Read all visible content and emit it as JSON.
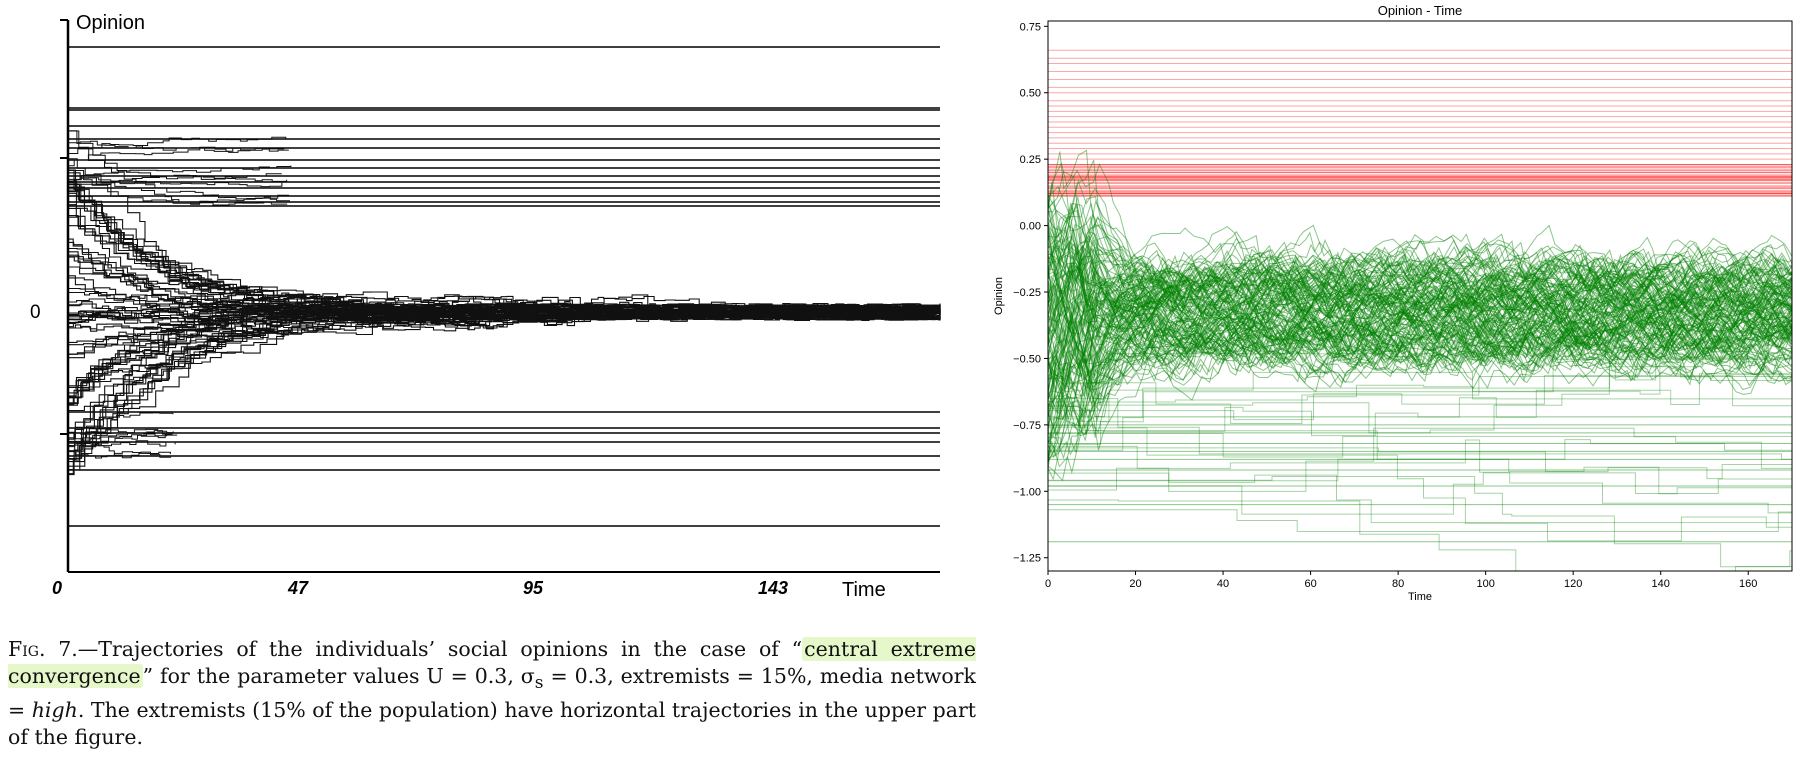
{
  "left_figure": {
    "y_axis_title": "Opinion",
    "y_zero_label": "0",
    "x_axis_title": "Time",
    "x_tick_labels": [
      "0",
      "47",
      "95",
      "143"
    ]
  },
  "chart_data": {
    "type": "line",
    "title": "Opinion - Time",
    "xlabel": "Time",
    "ylabel": "Opinion",
    "xlim": [
      0,
      170
    ],
    "ylim": [
      -1.3,
      0.77
    ],
    "x_ticks": [
      0,
      20,
      40,
      60,
      80,
      100,
      120,
      140,
      160
    ],
    "y_ticks": [
      0.75,
      0.5,
      0.25,
      0.0,
      -0.25,
      -0.5,
      -0.75,
      -1.0,
      -1.25
    ],
    "y_tick_labels": [
      "0.75",
      "0.50",
      "0.25",
      "0.00",
      "−0.25",
      "−0.50",
      "−0.75",
      "−1.00",
      "−1.25"
    ],
    "grid": false,
    "series_colors": [
      "#ff0000",
      "#008000"
    ],
    "extremist_levels": [
      0.66,
      0.63,
      0.61,
      0.58,
      0.55,
      0.52,
      0.5,
      0.47,
      0.45,
      0.43,
      0.41,
      0.39,
      0.37,
      0.35,
      0.33,
      0.31,
      0.29,
      0.27,
      0.25,
      0.23,
      0.21,
      0.2,
      0.18,
      0.17,
      0.16,
      0.15,
      0.14,
      0.13,
      0.12,
      0.11
    ],
    "cluster_center": -0.32,
    "stable_levels": [
      -0.75,
      -0.78,
      -0.82,
      -0.85,
      -0.88,
      -0.92,
      -0.98,
      -1.05,
      -1.19,
      -0.72
    ]
  },
  "caption": {
    "fig_label": "Fig. 7.",
    "part1": "—Trajectories of the individuals’ social opinions in the case of “",
    "highlight": "central extreme convergence",
    "part2": "” for the parameter values U = 0.3, σ",
    "sub_s": "s",
    "part3": " = 0.3, extremists = 15%, media network = ",
    "italic": "high",
    "part4": ". The extremists (15% of the population) have horizontal trajectories in the upper part of the figure."
  }
}
